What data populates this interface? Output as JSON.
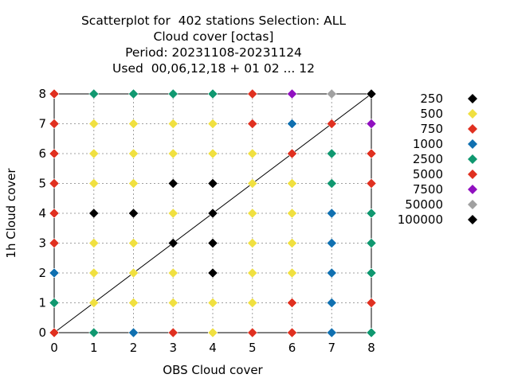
{
  "chart_data": {
    "type": "scatter",
    "title_lines": [
      "Scatterplot for  402 stations Selection: ALL",
      "Cloud cover [octas]",
      "Period: 20231108-20231124",
      "Used  00,06,12,18 + 01 02 ... 12"
    ],
    "xlabel": "OBS Cloud cover",
    "ylabel": "1h Cloud cover",
    "xlim": [
      0,
      8
    ],
    "ylim": [
      0,
      8
    ],
    "xticks": [
      "0",
      "1",
      "2",
      "3",
      "4",
      "5",
      "6",
      "7",
      "8"
    ],
    "yticks": [
      "0",
      "1",
      "2",
      "3",
      "4",
      "5",
      "6",
      "7",
      "8"
    ],
    "grid": true,
    "diagonal": true,
    "legend_position": "right",
    "series": [
      {
        "name": "250",
        "color": "#000000",
        "points": [
          [
            1,
            4
          ],
          [
            2,
            4
          ],
          [
            3,
            3
          ],
          [
            3,
            5
          ],
          [
            4,
            2
          ],
          [
            4,
            3
          ],
          [
            4,
            4
          ],
          [
            4,
            5
          ],
          [
            8,
            8
          ]
        ]
      },
      {
        "name": "500",
        "color": "#f0e040",
        "points": [
          [
            1,
            1
          ],
          [
            1,
            2
          ],
          [
            1,
            3
          ],
          [
            1,
            5
          ],
          [
            1,
            6
          ],
          [
            1,
            7
          ],
          [
            2,
            1
          ],
          [
            2,
            2
          ],
          [
            2,
            3
          ],
          [
            2,
            5
          ],
          [
            2,
            6
          ],
          [
            2,
            7
          ],
          [
            3,
            1
          ],
          [
            3,
            2
          ],
          [
            3,
            4
          ],
          [
            3,
            6
          ],
          [
            3,
            7
          ],
          [
            4,
            0
          ],
          [
            4,
            1
          ],
          [
            4,
            6
          ],
          [
            4,
            7
          ],
          [
            5,
            1
          ],
          [
            5,
            2
          ],
          [
            5,
            3
          ],
          [
            5,
            4
          ],
          [
            5,
            5
          ],
          [
            5,
            6
          ],
          [
            6,
            2
          ],
          [
            6,
            3
          ],
          [
            6,
            4
          ],
          [
            6,
            5
          ]
        ]
      },
      {
        "name": "750",
        "color": "#e03020",
        "points": [
          [
            0,
            0
          ],
          [
            0,
            3
          ],
          [
            0,
            4
          ],
          [
            0,
            5
          ],
          [
            0,
            6
          ],
          [
            0,
            7
          ],
          [
            0,
            8
          ],
          [
            3,
            0
          ],
          [
            5,
            0
          ],
          [
            5,
            7
          ],
          [
            5,
            8
          ],
          [
            6,
            0
          ],
          [
            6,
            1
          ],
          [
            6,
            6
          ],
          [
            7,
            7
          ],
          [
            8,
            1
          ],
          [
            8,
            5
          ],
          [
            8,
            6
          ]
        ]
      },
      {
        "name": "1000",
        "color": "#1070b0",
        "points": [
          [
            0,
            2
          ],
          [
            2,
            0
          ],
          [
            6,
            7
          ],
          [
            7,
            0
          ],
          [
            7,
            1
          ],
          [
            7,
            2
          ],
          [
            7,
            3
          ],
          [
            7,
            4
          ]
        ]
      },
      {
        "name": "2500",
        "color": "#109870",
        "points": [
          [
            0,
            1
          ],
          [
            1,
            0
          ],
          [
            1,
            8
          ],
          [
            2,
            8
          ],
          [
            3,
            8
          ],
          [
            4,
            8
          ],
          [
            7,
            5
          ],
          [
            7,
            6
          ],
          [
            8,
            0
          ],
          [
            8,
            2
          ],
          [
            8,
            3
          ],
          [
            8,
            4
          ]
        ]
      },
      {
        "name": "5000",
        "color": "#e03020",
        "points": []
      },
      {
        "name": "7500",
        "color": "#9010c0",
        "points": [
          [
            6,
            8
          ],
          [
            8,
            7
          ]
        ]
      },
      {
        "name": "50000",
        "color": "#a0a0a0",
        "points": [
          [
            7,
            8
          ]
        ]
      },
      {
        "name": "100000",
        "color": "#000000",
        "points": []
      }
    ]
  }
}
